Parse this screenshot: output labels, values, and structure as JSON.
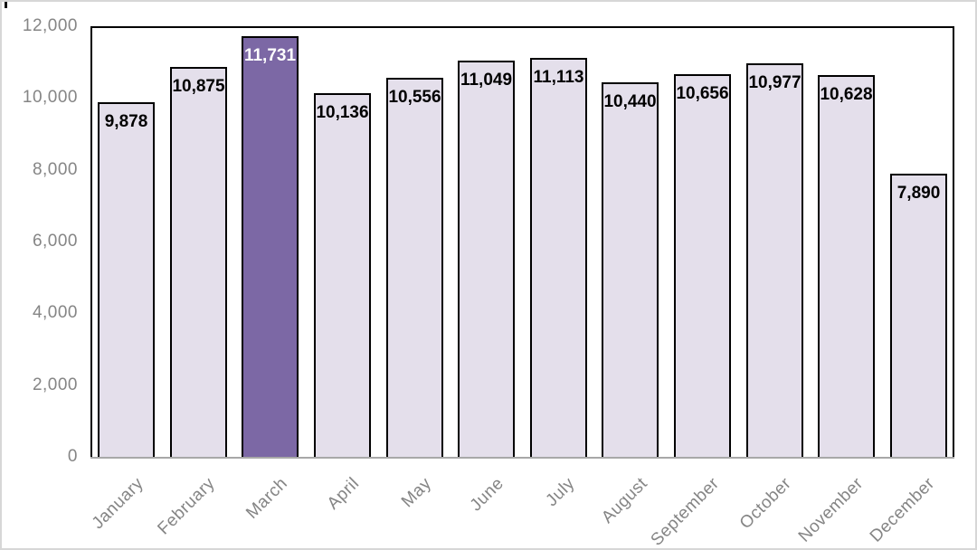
{
  "chart_data": {
    "type": "bar",
    "title": "",
    "xlabel": "",
    "ylabel": "",
    "categories": [
      "January",
      "February",
      "March",
      "April",
      "May",
      "June",
      "July",
      "August",
      "September",
      "October",
      "November",
      "December"
    ],
    "values": [
      9878,
      10875,
      11731,
      10136,
      10556,
      11049,
      11113,
      10440,
      10656,
      10977,
      10628,
      7890
    ],
    "data_labels": [
      "9,878",
      "10,875",
      "11,731",
      "10,136",
      "10,556",
      "11,049",
      "11,113",
      "10,440",
      "10,656",
      "10,977",
      "10,628",
      "7,890"
    ],
    "highlight_index": 2,
    "ylim": [
      0,
      12000
    ],
    "ytick_interval": 2000,
    "ytick_labels": [
      "0",
      "2,000",
      "4,000",
      "6,000",
      "8,000",
      "10,000",
      "12,000"
    ],
    "grid": false,
    "legend": false,
    "x_labels_rotation_deg": -45,
    "colors": {
      "bar_fill": "#E4DFEB",
      "bar_highlight_fill": "#7C68A5",
      "bar_border": "#000000",
      "data_label": "#000000",
      "data_label_highlight": "#FFFFFF",
      "axis_text": "#858585",
      "axis_line": "#A8A8A8",
      "plot_border": "#000000",
      "background": "#FFFFFF"
    }
  }
}
